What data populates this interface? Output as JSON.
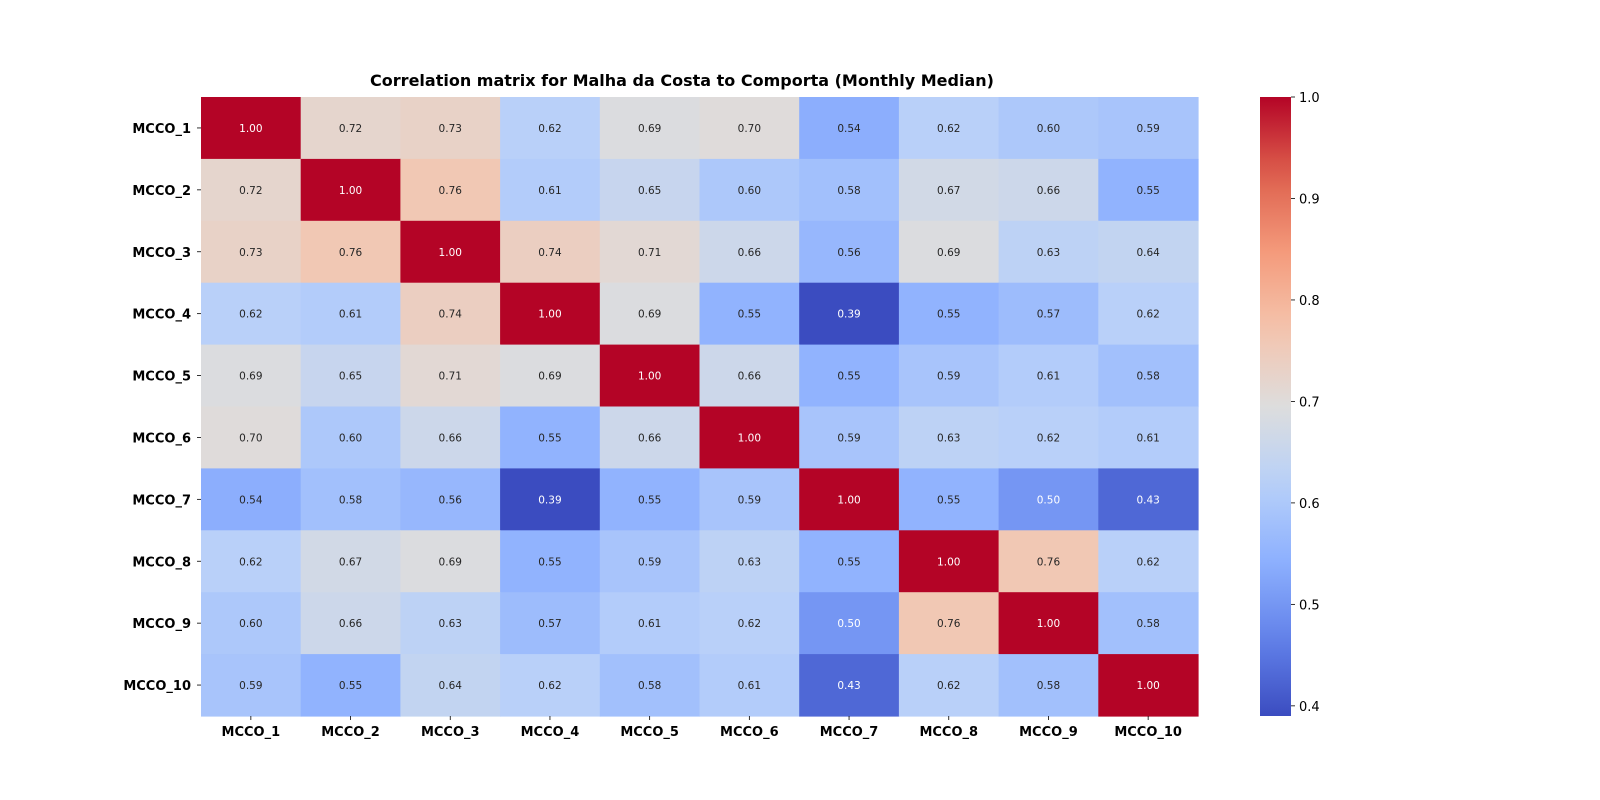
{
  "chart_data": {
    "type": "heatmap",
    "title": "Correlation matrix for Malha da Costa to Comporta (Monthly Median)",
    "x_labels": [
      "MCCO_1",
      "MCCO_2",
      "MCCO_3",
      "MCCO_4",
      "MCCO_5",
      "MCCO_6",
      "MCCO_7",
      "MCCO_8",
      "MCCO_9",
      "MCCO_10"
    ],
    "y_labels": [
      "MCCO_1",
      "MCCO_2",
      "MCCO_3",
      "MCCO_4",
      "MCCO_5",
      "MCCO_6",
      "MCCO_7",
      "MCCO_8",
      "MCCO_9",
      "MCCO_10"
    ],
    "values": [
      [
        1.0,
        0.72,
        0.73,
        0.62,
        0.69,
        0.7,
        0.54,
        0.62,
        0.6,
        0.59
      ],
      [
        0.72,
        1.0,
        0.76,
        0.61,
        0.65,
        0.6,
        0.58,
        0.67,
        0.66,
        0.55
      ],
      [
        0.73,
        0.76,
        1.0,
        0.74,
        0.71,
        0.66,
        0.56,
        0.69,
        0.63,
        0.64
      ],
      [
        0.62,
        0.61,
        0.74,
        1.0,
        0.69,
        0.55,
        0.39,
        0.55,
        0.57,
        0.62
      ],
      [
        0.69,
        0.65,
        0.71,
        0.69,
        1.0,
        0.66,
        0.55,
        0.59,
        0.61,
        0.58
      ],
      [
        0.7,
        0.6,
        0.66,
        0.55,
        0.66,
        1.0,
        0.59,
        0.63,
        0.62,
        0.61
      ],
      [
        0.54,
        0.58,
        0.56,
        0.39,
        0.55,
        0.59,
        1.0,
        0.55,
        0.5,
        0.43
      ],
      [
        0.62,
        0.67,
        0.69,
        0.55,
        0.59,
        0.63,
        0.55,
        1.0,
        0.76,
        0.62
      ],
      [
        0.6,
        0.66,
        0.63,
        0.57,
        0.61,
        0.62,
        0.5,
        0.76,
        1.0,
        0.58
      ],
      [
        0.59,
        0.55,
        0.64,
        0.62,
        0.58,
        0.61,
        0.43,
        0.62,
        0.58,
        1.0
      ]
    ],
    "value_format": "2 decimals",
    "colormap": "coolwarm",
    "vmin": 0.39,
    "vmax": 1.0,
    "colorbar_ticks": [
      0.4,
      0.5,
      0.6,
      0.7,
      0.8,
      0.9,
      1.0
    ],
    "colorbar_tick_labels": [
      "0.4",
      "0.5",
      "0.6",
      "0.7",
      "0.8",
      "0.9",
      "1.0"
    ]
  }
}
